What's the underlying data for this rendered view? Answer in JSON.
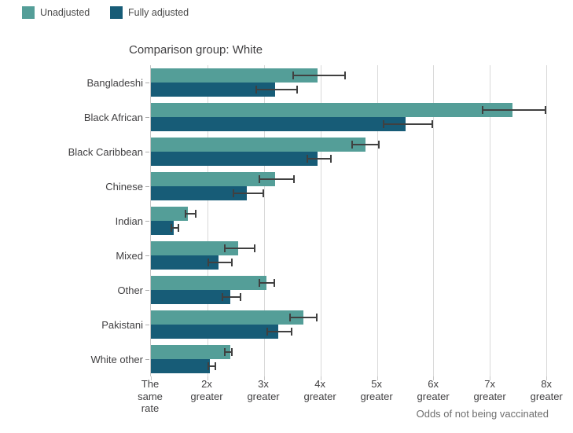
{
  "chart_data": {
    "type": "bar",
    "orientation": "horizontal",
    "title": "Comparison group: White",
    "xlabel": "Odds of not being vaccinated",
    "categories": [
      "Bangladeshi",
      "Black African",
      "Black Caribbean",
      "Chinese",
      "Indian",
      "Mixed",
      "Other",
      "Pakistani",
      "White other"
    ],
    "series": [
      {
        "name": "Unadjusted",
        "color": "#549E98",
        "values": [
          3.95,
          7.4,
          4.8,
          3.2,
          1.65,
          2.55,
          3.05,
          3.7,
          2.4
        ],
        "ci_low": [
          3.5,
          6.85,
          4.55,
          2.9,
          1.6,
          2.3,
          2.9,
          3.45,
          2.3
        ],
        "ci_high": [
          4.45,
          8.0,
          5.05,
          3.55,
          1.8,
          2.85,
          3.2,
          3.95,
          2.45
        ]
      },
      {
        "name": "Fully adjusted",
        "color": "#175C77",
        "values": [
          3.2,
          5.5,
          3.95,
          2.7,
          1.4,
          2.2,
          2.4,
          3.25,
          2.05
        ],
        "ci_low": [
          2.85,
          5.1,
          3.75,
          2.45,
          1.35,
          2.0,
          2.25,
          3.05,
          2.0
        ],
        "ci_high": [
          3.6,
          6.0,
          4.2,
          3.0,
          1.5,
          2.45,
          2.6,
          3.5,
          2.15
        ]
      }
    ],
    "x_ticks": [
      {
        "value": 1,
        "label": "The same rate"
      },
      {
        "value": 2,
        "label": "2x greater"
      },
      {
        "value": 3,
        "label": "3x greater"
      },
      {
        "value": 4,
        "label": "4x greater"
      },
      {
        "value": 5,
        "label": "5x greater"
      },
      {
        "value": 6,
        "label": "6x greater"
      },
      {
        "value": 7,
        "label": "7x greater"
      },
      {
        "value": 8,
        "label": "8x greater"
      }
    ],
    "xlim": [
      1,
      8.4
    ],
    "grid": true,
    "error_bars": true,
    "legend_position": "top-left"
  },
  "colors": {
    "unadjusted": "#549E98",
    "fully_adjusted": "#175C77",
    "gridline": "#d9d9d9",
    "axis_line": "#c6c6c6",
    "error_bar": "#404040",
    "text": "#414042",
    "muted_text": "#6e6e6e"
  }
}
